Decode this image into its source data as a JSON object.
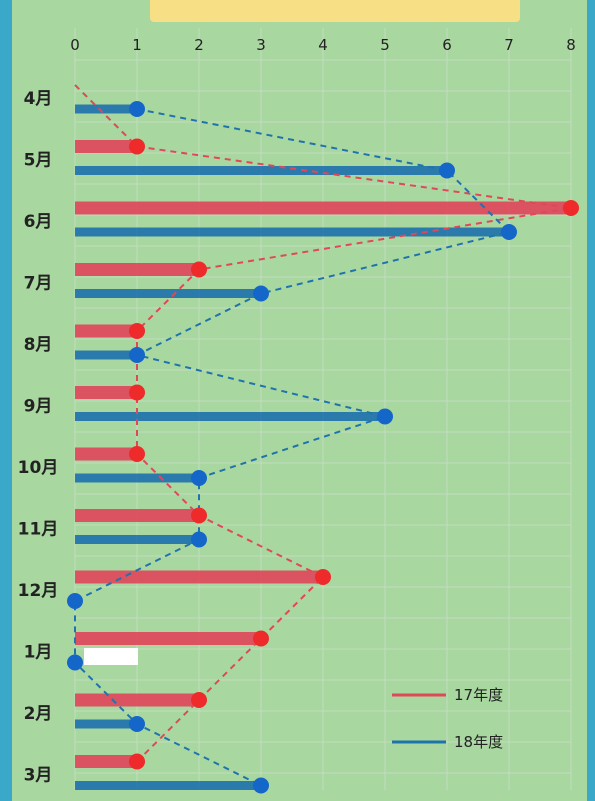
{
  "chart_data": {
    "type": "bar",
    "orientation": "horizontal",
    "title": "",
    "xlabel": "",
    "ylabel": "",
    "xlim": [
      0,
      8
    ],
    "x_ticks": [
      "0",
      "1",
      "2",
      "3",
      "4",
      "5",
      "6",
      "7",
      "8"
    ],
    "categories": [
      "4月",
      "5月",
      "6月",
      "7月",
      "8月",
      "9月",
      "10月",
      "11月",
      "12月",
      "1月",
      "2月",
      "3月"
    ],
    "grid": true,
    "legend_position": "bottom-right",
    "series": [
      {
        "name": "17年度",
        "color": "#e0485a",
        "values": [
          0,
          1,
          8,
          2,
          1,
          1,
          1,
          2,
          4,
          3,
          2,
          1
        ]
      },
      {
        "name": "18年度",
        "color": "#1f73ad",
        "values": [
          1,
          6,
          7,
          3,
          1,
          5,
          2,
          2,
          0,
          0,
          1,
          3
        ]
      }
    ]
  },
  "colors": {
    "board": "#a9d7a0",
    "frame": "#3aa9c9",
    "grid": "#c4dcbf",
    "title_card": "#f7df86"
  }
}
